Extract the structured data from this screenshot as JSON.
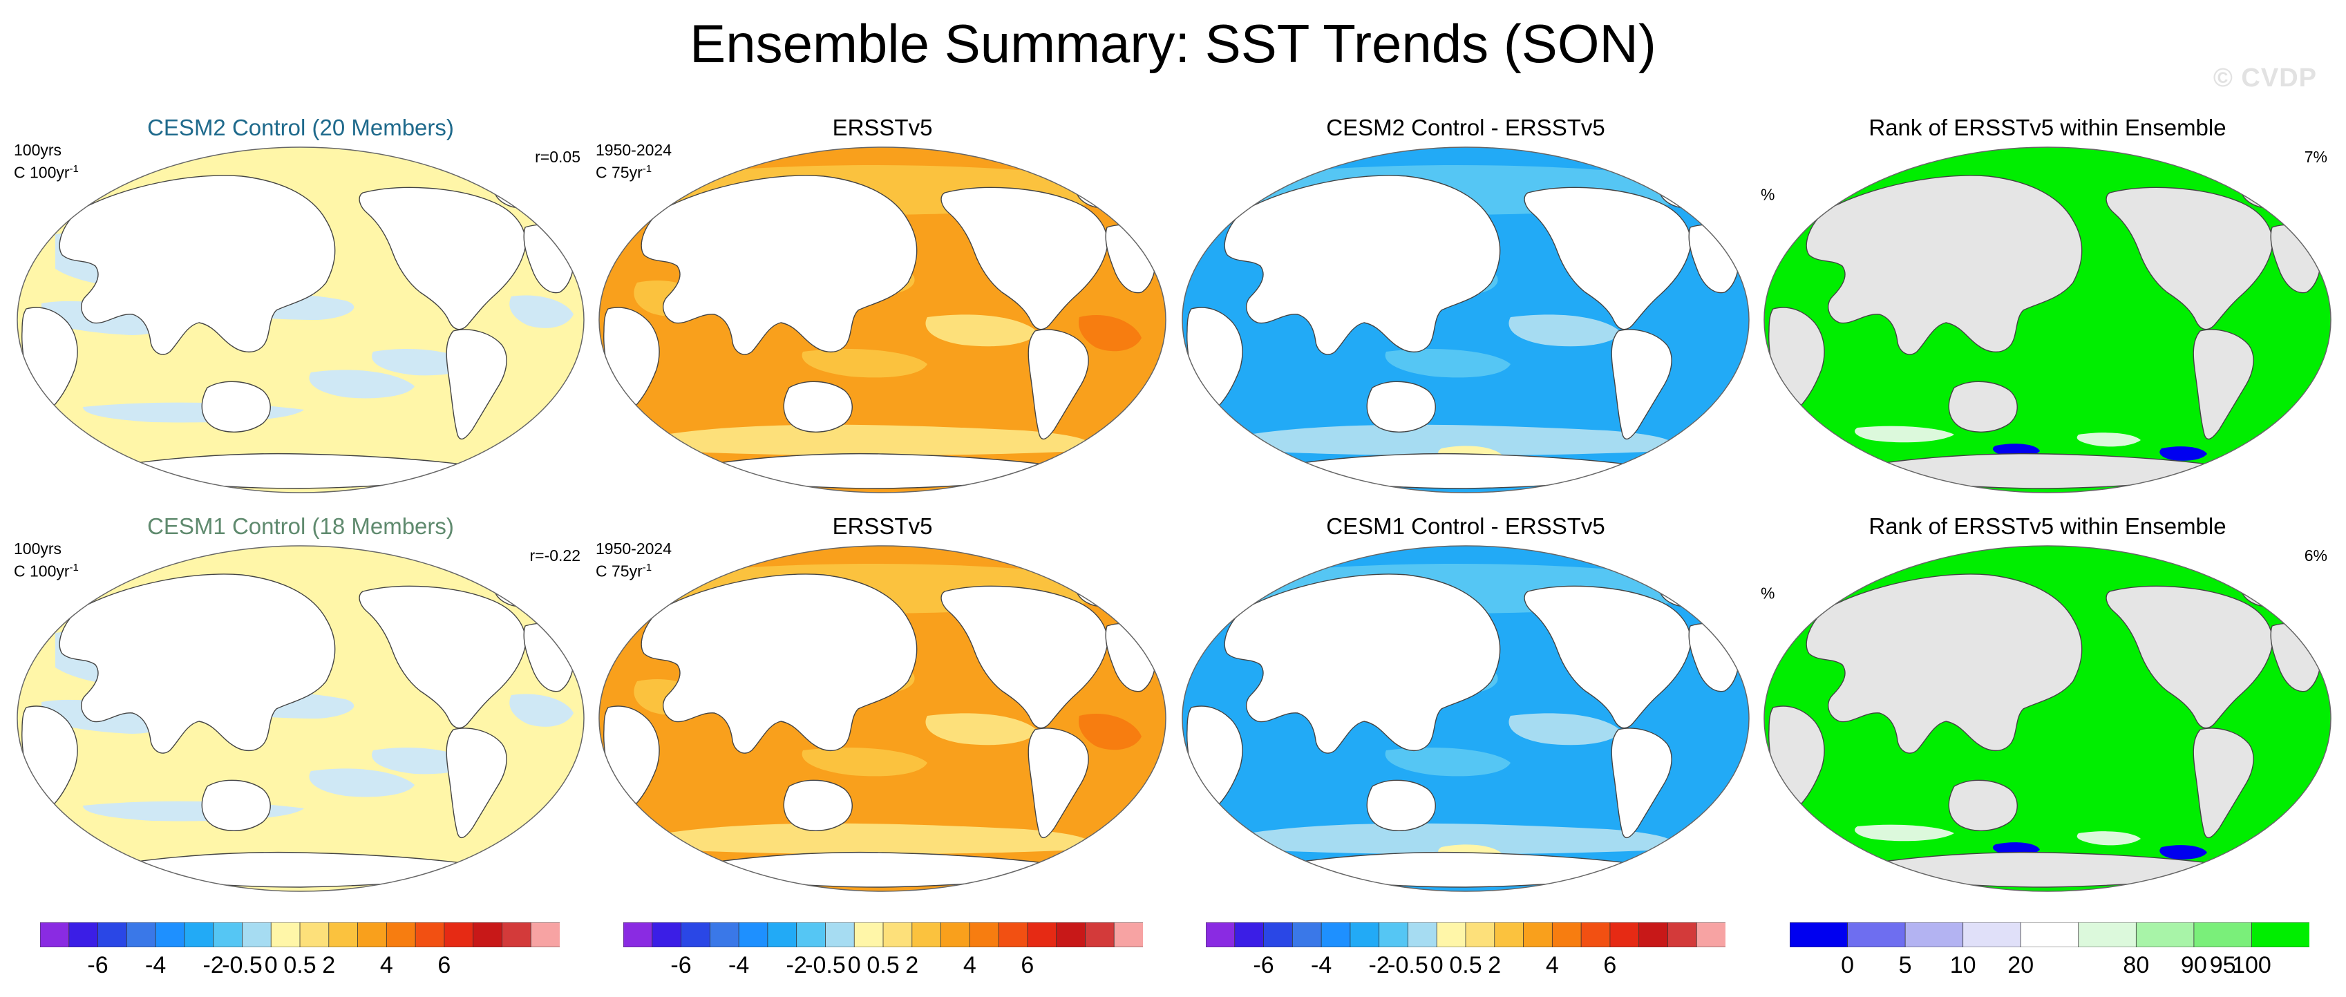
{
  "figure": {
    "title": "Ensemble Summary: SST Trends (SON)",
    "watermark": "© CVDP"
  },
  "rows": [
    {
      "panels": [
        {
          "title": "CESM2 Control (20 Members)",
          "left_label_1": "100yrs",
          "left_label_2": "C 100yr",
          "left_sup": "-1",
          "right_label": "r=0.05",
          "type": "ensemble"
        },
        {
          "title": "ERSSTv5",
          "left_label_1": "1950-2024",
          "left_label_2": "C 75yr",
          "left_sup": "-1",
          "right_label": "",
          "type": "obs"
        },
        {
          "title": "CESM2 Control - ERSSTv5",
          "left_label_1": "",
          "left_label_2": "",
          "left_sup": "",
          "right_label": "",
          "type": "diff"
        },
        {
          "title": "Rank of ERSSTv5 within Ensemble",
          "left_label_1": "",
          "left_label_2": "%",
          "left_sup": "",
          "right_label": "7%",
          "type": "rank"
        }
      ]
    },
    {
      "panels": [
        {
          "title": "CESM1 Control (18 Members)",
          "left_label_1": "100yrs",
          "left_label_2": "C 100yr",
          "left_sup": "-1",
          "right_label": "r=-0.22",
          "type": "ensemble"
        },
        {
          "title": "ERSSTv5",
          "left_label_1": "1950-2024",
          "left_label_2": "C 75yr",
          "left_sup": "-1",
          "right_label": "",
          "type": "obs"
        },
        {
          "title": "CESM1 Control - ERSSTv5",
          "left_label_1": "",
          "left_label_2": "",
          "left_sup": "",
          "right_label": "",
          "type": "diff"
        },
        {
          "title": "Rank of ERSSTv5 within Ensemble",
          "left_label_1": "",
          "left_label_2": "%",
          "left_sup": "",
          "right_label": "6%",
          "type": "rank"
        }
      ]
    }
  ],
  "colorbars": {
    "trend": {
      "colors": [
        "#8a2be2",
        "#3b1ee6",
        "#2a47e6",
        "#3a78e8",
        "#1e90ff",
        "#22aaf6",
        "#55c6f4",
        "#a6dcf2",
        "#fff6a8",
        "#fde07a",
        "#fbc23e",
        "#f9a01c",
        "#f77d10",
        "#f25012",
        "#e62a14",
        "#c81818",
        "#d33a3a",
        "#f7a3a3"
      ],
      "tick_labels": [
        "-6",
        "-4",
        "-2",
        "-0.5",
        "0",
        "0.5",
        "2",
        "4",
        "6"
      ],
      "tick_positions": [
        2,
        4,
        6,
        7,
        8,
        9,
        10,
        12,
        14
      ]
    },
    "rank": {
      "colors": [
        "#0000f0",
        "#6e6ef0",
        "#b3b3f2",
        "#e0e0f9",
        "#ffffff",
        "#dcf9dc",
        "#a8f4a8",
        "#7aef7a",
        "#00ee00"
      ],
      "tick_labels": [
        "0",
        "5",
        "10",
        "20",
        "80",
        "90",
        "95",
        "100"
      ],
      "tick_positions": [
        1,
        2,
        3,
        4,
        6,
        7,
        7.5,
        8
      ]
    }
  }
}
